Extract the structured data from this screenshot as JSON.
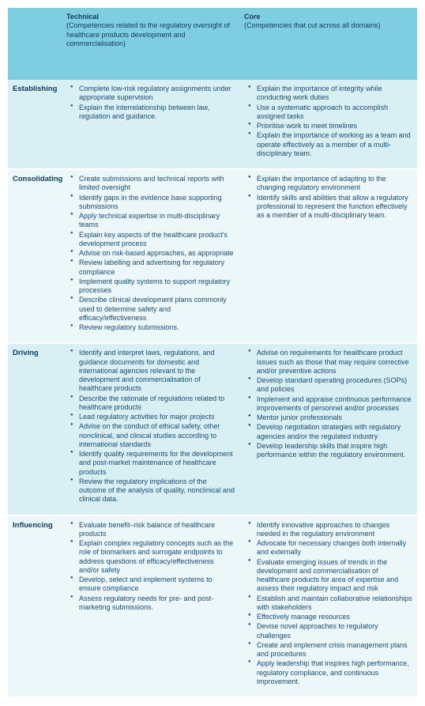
{
  "colors": {
    "header_bg": "#7fcde0",
    "band_dark": "#d8eff4",
    "band_light": "#ecf7fa",
    "text": "#1a4a6e"
  },
  "columns": [
    {
      "title": "",
      "desc": ""
    },
    {
      "title": "Technical",
      "desc": "(Competencies related to the regulatory oversight of healthcare products development and commercialisation)"
    },
    {
      "title": "Core",
      "desc": "(Competencies that cut across all domains)"
    }
  ],
  "rows": [
    {
      "label": "Establishing",
      "technical": [
        "Complete low-risk regulatory assignments under appropriate supervision",
        "Explain the interrelationship between law, regulation and guidance."
      ],
      "core": [
        "Explain the importance of integrity while conducting work duties",
        "Use a systematic approach to accomplish assigned tasks",
        "Prioritise work to meet timelines",
        "Explain the importance of working as a team and operate effectively as a member of a multi-disciplinary team."
      ]
    },
    {
      "label": "Consolidating",
      "technical": [
        "Create submissions and technical reports with limited oversight",
        "Identify gaps in the evidence base supporting submissions",
        "Apply technical expertise in multi-disciplinary teams",
        "Explain key aspects of the healthcare product's development process",
        "Advise on risk-based approaches, as appropriate",
        "Review labelling and advertising for regulatory compliance",
        "Implement quality systems to support regulatory processes",
        "Describe clinical development plans commonly used to determine safety and efficacy/effectiveness",
        "Review regulatory submissions."
      ],
      "core": [
        "Explain the importance of adapting to the changing regulatory environment",
        "Identify skills and abilities that allow a regulatory professional to represent the function effectively as a member of a multi-disciplinary team."
      ]
    },
    {
      "label": "Driving",
      "technical": [
        "Identify and interpret laws, regulations, and guidance documents for domestic and international agencies relevant to the development and commercialisation of healthcare products",
        "Describe the rationale of regulations related to healthcare products",
        "Lead regulatory activities for major projects",
        "Advise on the conduct of ethical safety, other nonclinical, and clinical studies according to international standards",
        "Identify quality requirements for the development and post-market maintenance of healthcare products",
        "Review the regulatory implications of the outcome of the analysis of quality, nonclinical and clinical data."
      ],
      "core": [
        "Advise on requirements for healthcare product issues such as those that may require corrective and/or preventive actions",
        "Develop standard operating procedures (SOPs) and policies",
        "Implement and appraise continuous performance improvements of personnel and/or processes",
        "Mentor junior professionals",
        "Develop negotiation strategies with regulatory agencies and/or the regulated industry",
        "Develop leadership skills that inspire high performance within the regulatory environment."
      ]
    },
    {
      "label": "Influencing",
      "technical": [
        "Evaluate benefit–risk balance of healthcare products",
        "Explain complex regulatory concepts such as the role of biomarkers and surrogate endpoints to address questions of efficacy/effectiveness and/or safety",
        "Develop, select and implement systems to ensure compliance",
        "Assess regulatory needs for pre- and post-marketing submissions."
      ],
      "core": [
        "Identify innovative approaches to changes needed in the regulatory environment",
        "Advocate for necessary changes both internally and externally",
        "Evaluate emerging issues of trends in the development and commercialisation of healthcare products for area of expertise and assess their regulatory impact and risk",
        "Establish and maintain collaborative relationships with stakeholders",
        "Effectively manage resources",
        "Devise novel approaches to regulatory challenges",
        "Create and implement crisis management plans and procedures",
        "Apply leadership that inspires high performance, regulatory compliance, and continuous improvement."
      ]
    }
  ]
}
